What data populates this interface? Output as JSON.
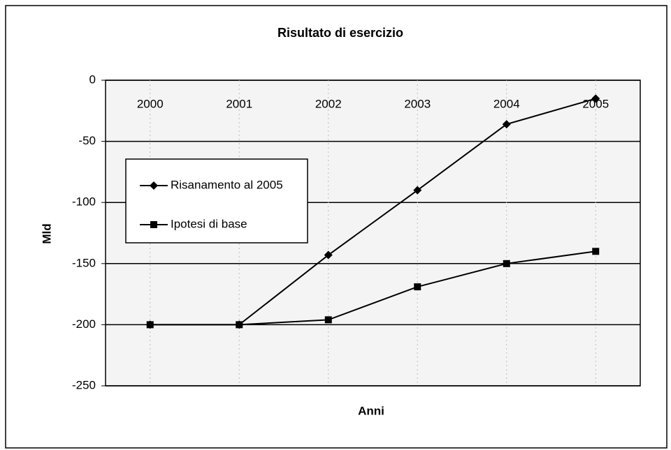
{
  "chart_data": {
    "type": "line",
    "title": "Risultato di esercizio",
    "xlabel": "Anni",
    "ylabel": "Mld",
    "categories": [
      "2000",
      "2001",
      "2002",
      "2003",
      "2004",
      "2005"
    ],
    "series": [
      {
        "name": "Risanamento al 2005",
        "color": "#000000",
        "marker": "diamond",
        "values": [
          -200,
          -200,
          -143,
          -90,
          -36,
          -15
        ]
      },
      {
        "name": "Ipotesi di base",
        "color": "#000000",
        "marker": "square",
        "values": [
          -200,
          -200,
          -196,
          -169,
          -150,
          -140
        ]
      }
    ],
    "ylim": [
      -250,
      0
    ],
    "yticks": [
      0,
      -50,
      -100,
      -150,
      -200,
      -250
    ],
    "grid": true,
    "legend": "left"
  }
}
